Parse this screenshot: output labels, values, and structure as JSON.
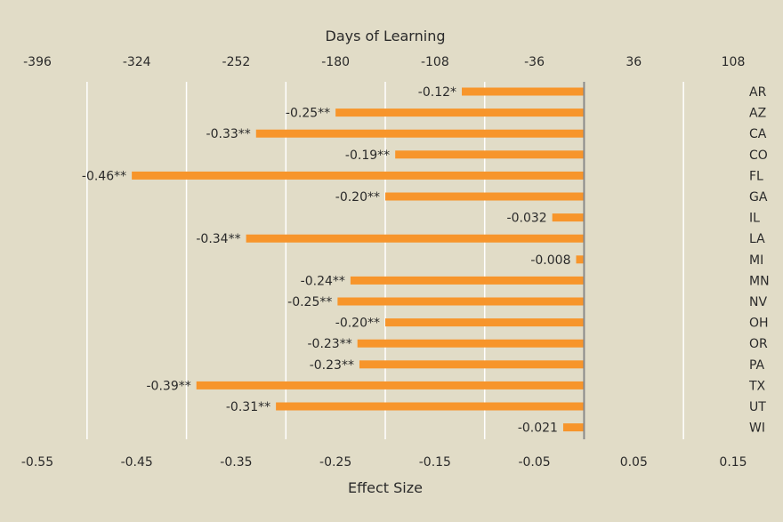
{
  "chart_data": {
    "type": "bar",
    "orientation": "horizontal",
    "top_axis_title": "Days of Learning",
    "top_ticks": [
      "-396",
      "-324",
      "-252",
      "-180",
      "-108",
      "-36",
      "36",
      "108"
    ],
    "bottom_axis_title": "Effect Size",
    "bottom_ticks": [
      "-0.55",
      "-0.45",
      "-0.35",
      "-0.25",
      "-0.15",
      "-0.05",
      "0.05",
      "0.15"
    ],
    "xlim": [
      -0.55,
      0.15
    ],
    "grid": "vertical",
    "categories": [
      "AR",
      "AZ",
      "CA",
      "CO",
      "FL",
      "GA",
      "IL",
      "LA",
      "MI",
      "MN",
      "NV",
      "OH",
      "OR",
      "PA",
      "TX",
      "UT",
      "WI"
    ],
    "values": [
      -0.123,
      -0.25,
      -0.33,
      -0.19,
      -0.455,
      -0.2,
      -0.032,
      -0.34,
      -0.008,
      -0.235,
      -0.248,
      -0.2,
      -0.228,
      -0.226,
      -0.39,
      -0.31,
      -0.021
    ],
    "labels": [
      "-0.12*",
      "-0.25**",
      "-0.33**",
      "-0.19**",
      "-0.46**",
      "-0.20**",
      "-0.032",
      "-0.34**",
      "-0.008",
      "-0.24**",
      "-0.25**",
      "-0.20**",
      "-0.23**",
      "-0.23**",
      "-0.39**",
      "-0.31**",
      "-0.021"
    ],
    "colors": {
      "bar": "#f7952b",
      "grid": "#ffffff",
      "zero_line": "#8a8a8a",
      "background": "#e1dcc7"
    }
  }
}
